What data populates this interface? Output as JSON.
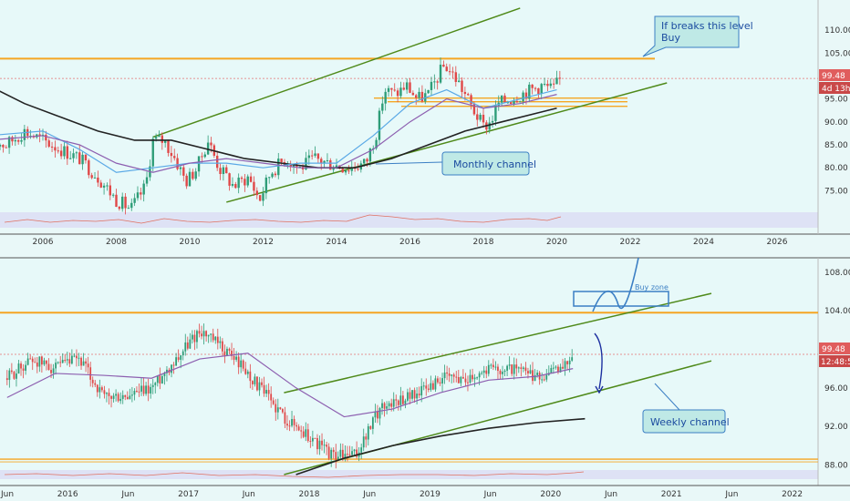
{
  "colors": {
    "background": "#e9f8f8",
    "up": "#2e9d78",
    "down": "#e04848",
    "channel": "#4f8a1a",
    "resistance": "#f5a623",
    "sma200": "#222222",
    "ema_blue": "#5aa9e6",
    "ema_purple": "#8d5fb0",
    "annotation": "#1c4ca0",
    "callout_fill": "#bfe9e6",
    "price_badge": "#e05d5d",
    "timer_badge": "#c94848",
    "rsi": "#e07060",
    "rsi_band": "#d8d8f4"
  },
  "chart_data": [
    {
      "type": "candlestick",
      "timeframe": "monthly",
      "x_ticks": [
        "2006",
        "2008",
        "2010",
        "2012",
        "2014",
        "2016",
        "2018",
        "2020",
        "2022",
        "2024",
        "2026"
      ],
      "y_ticks": [
        "110.00",
        "105.00",
        "100.00",
        "95.00",
        "90.00",
        "85.00",
        "80.00",
        "75.00"
      ],
      "ylim": [
        70.5,
        114
      ],
      "last_price": "99.48",
      "countdown": "4d 13h",
      "resistance_level": 103.8,
      "support_levels": [
        95.2,
        94.4,
        93.4
      ],
      "channel": {
        "upper": [
          [
            2009.0,
            86.7
          ],
          [
            2019.0,
            114.8
          ]
        ],
        "lower": [
          [
            2011.0,
            72.5
          ],
          [
            2023.0,
            98.5
          ]
        ]
      },
      "series_close": [
        [
          2004.5,
          86
        ],
        [
          2005.0,
          85
        ],
        [
          2005.5,
          88
        ],
        [
          2006.0,
          86
        ],
        [
          2006.5,
          84
        ],
        [
          2007.0,
          82
        ],
        [
          2007.5,
          78
        ],
        [
          2008.0,
          73
        ],
        [
          2008.4,
          71
        ],
        [
          2008.8,
          76
        ],
        [
          2009.0,
          86
        ],
        [
          2009.3,
          86
        ],
        [
          2009.6,
          82
        ],
        [
          2009.9,
          77
        ],
        [
          2010.2,
          80
        ],
        [
          2010.5,
          86
        ],
        [
          2010.8,
          80
        ],
        [
          2011.2,
          76
        ],
        [
          2011.6,
          78
        ],
        [
          2011.9,
          73
        ],
        [
          2012.2,
          79
        ],
        [
          2012.6,
          82
        ],
        [
          2013.0,
          80
        ],
        [
          2013.4,
          82
        ],
        [
          2013.8,
          81
        ],
        [
          2014.3,
          80
        ],
        [
          2014.8,
          81
        ],
        [
          2015.1,
          88
        ],
        [
          2015.3,
          97
        ],
        [
          2015.6,
          96
        ],
        [
          2015.9,
          98
        ],
        [
          2016.2,
          95
        ],
        [
          2016.5,
          96
        ],
        [
          2016.9,
          102
        ],
        [
          2017.0,
          102
        ],
        [
          2017.3,
          99
        ],
        [
          2017.7,
          93
        ],
        [
          2018.0,
          89
        ],
        [
          2018.2,
          90
        ],
        [
          2018.4,
          94
        ],
        [
          2018.7,
          95
        ],
        [
          2019.0,
          96
        ],
        [
          2019.3,
          97
        ],
        [
          2019.6,
          98
        ],
        [
          2019.9,
          97
        ],
        [
          2020.1,
          99.5
        ]
      ],
      "overlays": [
        {
          "name": "SMA",
          "points": [
            [
              2004.5,
              98
            ],
            [
              2005.5,
              94
            ],
            [
              2006.5,
              91
            ],
            [
              2007.5,
              88
            ],
            [
              2008.5,
              86
            ],
            [
              2009.5,
              86
            ],
            [
              2010.5,
              84
            ],
            [
              2011.5,
              82
            ],
            [
              2012.5,
              81
            ],
            [
              2013.5,
              80
            ],
            [
              2014.5,
              80
            ],
            [
              2015.5,
              82
            ],
            [
              2016.5,
              85
            ],
            [
              2017.5,
              88
            ],
            [
              2018.5,
              90
            ],
            [
              2019.5,
              92
            ],
            [
              2020.0,
              93
            ]
          ]
        },
        {
          "name": "EMA fast",
          "points": [
            [
              2004.5,
              87
            ],
            [
              2006.0,
              88
            ],
            [
              2007.0,
              84
            ],
            [
              2008.0,
              79
            ],
            [
              2009.0,
              80
            ],
            [
              2010.0,
              81
            ],
            [
              2011.0,
              81
            ],
            [
              2012.0,
              80
            ],
            [
              2013.0,
              81
            ],
            [
              2014.0,
              81
            ],
            [
              2015.0,
              87
            ],
            [
              2016.0,
              94
            ],
            [
              2017.0,
              97
            ],
            [
              2018.0,
              93
            ],
            [
              2019.0,
              95
            ],
            [
              2020.0,
              97
            ]
          ]
        },
        {
          "name": "EMA slow",
          "points": [
            [
              2004.5,
              86
            ],
            [
              2006.0,
              87
            ],
            [
              2007.0,
              85
            ],
            [
              2008.0,
              81
            ],
            [
              2009.0,
              79
            ],
            [
              2010.0,
              81
            ],
            [
              2011.0,
              82
            ],
            [
              2012.0,
              81
            ],
            [
              2013.0,
              80
            ],
            [
              2014.0,
              80
            ],
            [
              2015.0,
              84
            ],
            [
              2016.0,
              90
            ],
            [
              2017.0,
              95
            ],
            [
              2018.0,
              93
            ],
            [
              2019.0,
              94
            ],
            [
              2020.0,
              96
            ]
          ]
        }
      ]
    },
    {
      "type": "candlestick",
      "timeframe": "weekly",
      "x_ticks": [
        "Jun",
        "2016",
        "Jun",
        "2017",
        "Jun",
        "2018",
        "Jun",
        "2019",
        "Jun",
        "2020",
        "Jun",
        "2021",
        "Jun",
        "2022"
      ],
      "y_ticks": [
        "108.00",
        "104.00",
        "100.00",
        "96.00",
        "92.00",
        "88.00"
      ],
      "ylim": [
        87,
        109.5
      ],
      "last_price": "99.48",
      "countdown": "12:48:58",
      "resistance_level": 103.8,
      "support_level": 88.6,
      "channel": {
        "upper": [
          [
            2017.7,
            95.5
          ],
          [
            2021.25,
            105.8
          ]
        ],
        "lower": [
          [
            2017.7,
            87.0
          ],
          [
            2021.25,
            98.8
          ]
        ]
      },
      "series_close": [
        [
          2015.4,
          97
        ],
        [
          2015.6,
          99
        ],
        [
          2015.8,
          98
        ],
        [
          2016.0,
          99
        ],
        [
          2016.2,
          95
        ],
        [
          2016.4,
          95
        ],
        [
          2016.6,
          96
        ],
        [
          2016.8,
          99
        ],
        [
          2017.0,
          102
        ],
        [
          2017.1,
          101
        ],
        [
          2017.3,
          99
        ],
        [
          2017.5,
          96
        ],
        [
          2017.7,
          93
        ],
        [
          2018.0,
          90
        ],
        [
          2018.1,
          89
        ],
        [
          2018.3,
          89
        ],
        [
          2018.5,
          94
        ],
        [
          2018.7,
          95
        ],
        [
          2018.9,
          96
        ],
        [
          2019.0,
          97
        ],
        [
          2019.2,
          97
        ],
        [
          2019.4,
          98
        ],
        [
          2019.6,
          98
        ],
        [
          2019.8,
          97
        ],
        [
          2020.0,
          98
        ],
        [
          2020.1,
          99.5
        ]
      ],
      "sma": [
        [
          2017.8,
          87
        ],
        [
          2018.2,
          88.7
        ],
        [
          2018.6,
          90
        ],
        [
          2019.0,
          91
        ],
        [
          2019.4,
          91.8
        ],
        [
          2019.8,
          92.4
        ],
        [
          2020.2,
          92.8
        ]
      ],
      "ema": [
        [
          2015.4,
          95
        ],
        [
          2015.8,
          97.5
        ],
        [
          2016.2,
          97.3
        ],
        [
          2016.6,
          97
        ],
        [
          2017.0,
          99
        ],
        [
          2017.4,
          99.6
        ],
        [
          2017.8,
          96
        ],
        [
          2018.2,
          93
        ],
        [
          2018.6,
          93.8
        ],
        [
          2019.0,
          95.5
        ],
        [
          2019.4,
          96.8
        ],
        [
          2019.8,
          97.2
        ],
        [
          2020.1,
          98
        ]
      ]
    }
  ],
  "annotations": {
    "callout_top_line1": "If breaks this level",
    "callout_top_line2": "Buy",
    "monthly_channel": "Monthly channel",
    "weekly_channel": "Weekly channel",
    "buy_zone": "Buy zone"
  }
}
